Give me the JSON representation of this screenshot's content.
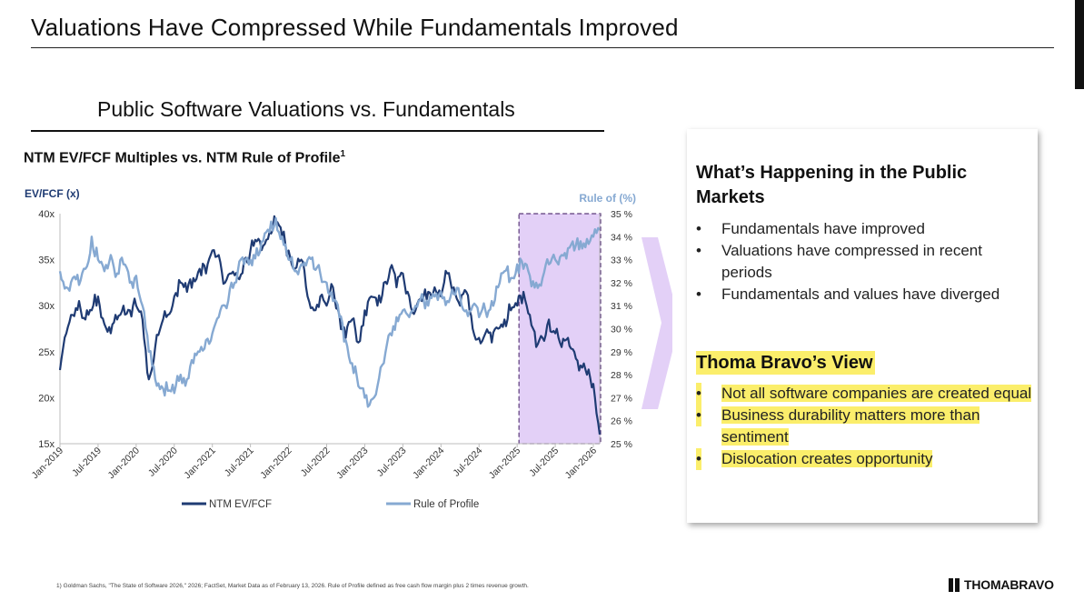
{
  "slide": {
    "title": "Valuations Have Compressed While Fundamentals Improved",
    "section_title": "Public Software Valuations vs. Fundamentals",
    "chart_title": "NTM EV/FCF Multiples vs. NTM Rule of Profile",
    "chart_title_superscript": "1",
    "footnote": "1) Goldman Sachs, \"The State of Software 2026,\" 2026; FactSet, Market Data as of February 13, 2026. Rule of Profile defined as free cash flow margin plus 2 times revenue growth.",
    "logo_text": "THOMABRAVO"
  },
  "panel": {
    "heading": "What’s Happening in the Public Markets",
    "bullets": [
      "Fundamentals have improved",
      "Valuations have compressed in recent periods",
      "Fundamentals and values have diverged"
    ],
    "view_heading": "Thoma Bravo’s View",
    "view_bullets": [
      "Not all software companies are created equal",
      "Business durability matters more than sentiment",
      "Dislocation creates opportunity"
    ],
    "bullet_glyph": "•",
    "highlight_color": "#fbee6b"
  },
  "chart_data": {
    "type": "line",
    "title": "NTM EV/FCF Multiples vs. NTM Rule of Profile",
    "y_left_label": "EV/FCF (x)",
    "y_right_label": "Rule of (%)",
    "y_left_ticks": [
      "40x",
      "35x",
      "30x",
      "25x",
      "20x",
      "15x"
    ],
    "y_right_ticks": [
      "35 %",
      "34 %",
      "33 %",
      "32 %",
      "31 %",
      "30 %",
      "29 %",
      "28 %",
      "27 %",
      "26 %",
      "25 %"
    ],
    "x_tick_labels": [
      "Jan-2019",
      "Jul-2019",
      "Jan-2020",
      "Jul-2020",
      "Jan-2021",
      "Jul-2021",
      "Jan-2022",
      "Jul-2022",
      "Jan-2023",
      "Jul-2023",
      "Jan-2024",
      "Jul-2024",
      "Jan-2025",
      "Jul-2025",
      "Jan-2026"
    ],
    "y_left_range": [
      15,
      40
    ],
    "y_right_range": [
      25,
      35
    ],
    "x_range": [
      "2019-01",
      "2026-02"
    ],
    "highlight_region": [
      "2025-01",
      "2026-01"
    ],
    "highlight_color": "#e3d0f7",
    "series": [
      {
        "name": "NTM EV/FCF",
        "axis": "left",
        "color": "#1f3b73",
        "points": [
          [
            "2019-01",
            23.0
          ],
          [
            "2019-02",
            27.0
          ],
          [
            "2019-03",
            29.0
          ],
          [
            "2019-04",
            30.5
          ],
          [
            "2019-05",
            28.5
          ],
          [
            "2019-06",
            29.5
          ],
          [
            "2019-07",
            31.0
          ],
          [
            "2019-08",
            28.0
          ],
          [
            "2019-09",
            27.0
          ],
          [
            "2019-10",
            28.5
          ],
          [
            "2019-11",
            30.0
          ],
          [
            "2019-12",
            29.5
          ],
          [
            "2020-01",
            30.0
          ],
          [
            "2020-02",
            28.5
          ],
          [
            "2020-03",
            22.0
          ],
          [
            "2020-04",
            25.5
          ],
          [
            "2020-05",
            28.0
          ],
          [
            "2020-06",
            29.0
          ],
          [
            "2020-07",
            31.0
          ],
          [
            "2020-08",
            32.5
          ],
          [
            "2020-09",
            31.5
          ],
          [
            "2020-10",
            33.0
          ],
          [
            "2020-11",
            34.0
          ],
          [
            "2020-12",
            33.5
          ],
          [
            "2021-01",
            36.0
          ],
          [
            "2021-02",
            35.5
          ],
          [
            "2021-03",
            32.5
          ],
          [
            "2021-04",
            33.5
          ],
          [
            "2021-05",
            33.0
          ],
          [
            "2021-06",
            35.0
          ],
          [
            "2021-07",
            36.0
          ],
          [
            "2021-08",
            37.0
          ],
          [
            "2021-09",
            36.5
          ],
          [
            "2021-10",
            38.0
          ],
          [
            "2021-11",
            39.0
          ],
          [
            "2021-12",
            37.5
          ],
          [
            "2022-01",
            36.0
          ],
          [
            "2022-02",
            34.0
          ],
          [
            "2022-03",
            35.0
          ],
          [
            "2022-04",
            31.0
          ],
          [
            "2022-05",
            29.5
          ],
          [
            "2022-06",
            31.0
          ],
          [
            "2022-07",
            30.0
          ],
          [
            "2022-08",
            32.0
          ],
          [
            "2022-09",
            29.0
          ],
          [
            "2022-10",
            26.5
          ],
          [
            "2022-11",
            28.5
          ],
          [
            "2022-12",
            26.0
          ],
          [
            "2023-01",
            29.5
          ],
          [
            "2023-02",
            31.0
          ],
          [
            "2023-03",
            30.0
          ],
          [
            "2023-04",
            32.5
          ],
          [
            "2023-05",
            34.0
          ],
          [
            "2023-06",
            32.0
          ],
          [
            "2023-07",
            33.5
          ],
          [
            "2023-08",
            31.0
          ],
          [
            "2023-09",
            29.5
          ],
          [
            "2023-10",
            30.5
          ],
          [
            "2023-11",
            31.5
          ],
          [
            "2023-12",
            32.0
          ],
          [
            "2024-01",
            31.0
          ],
          [
            "2024-02",
            33.5
          ],
          [
            "2024-03",
            32.0
          ],
          [
            "2024-04",
            30.0
          ],
          [
            "2024-05",
            31.5
          ],
          [
            "2024-06",
            27.5
          ],
          [
            "2024-07",
            26.5
          ],
          [
            "2024-08",
            27.0
          ],
          [
            "2024-09",
            26.0
          ],
          [
            "2024-10",
            27.5
          ],
          [
            "2024-11",
            28.5
          ],
          [
            "2024-12",
            29.5
          ],
          [
            "2025-01",
            30.0
          ],
          [
            "2025-02",
            31.5
          ],
          [
            "2025-03",
            29.0
          ],
          [
            "2025-04",
            25.5
          ],
          [
            "2025-05",
            26.5
          ],
          [
            "2025-06",
            28.5
          ],
          [
            "2025-07",
            27.0
          ],
          [
            "2025-08",
            25.5
          ],
          [
            "2025-09",
            26.5
          ],
          [
            "2025-10",
            25.0
          ],
          [
            "2025-11",
            23.5
          ],
          [
            "2025-12",
            22.5
          ],
          [
            "2026-01",
            21.5
          ],
          [
            "2026-02",
            16.0
          ]
        ]
      },
      {
        "name": "Rule of Profile",
        "axis": "right",
        "color": "#86a9d2",
        "points": [
          [
            "2019-01",
            32.5
          ],
          [
            "2019-02",
            31.8
          ],
          [
            "2019-03",
            32.2
          ],
          [
            "2019-04",
            31.9
          ],
          [
            "2019-05",
            32.6
          ],
          [
            "2019-06",
            34.0
          ],
          [
            "2019-07",
            33.0
          ],
          [
            "2019-08",
            32.5
          ],
          [
            "2019-09",
            33.2
          ],
          [
            "2019-10",
            32.4
          ],
          [
            "2019-11",
            32.8
          ],
          [
            "2019-12",
            32.0
          ],
          [
            "2020-01",
            32.3
          ],
          [
            "2020-02",
            31.0
          ],
          [
            "2020-03",
            29.0
          ],
          [
            "2020-04",
            27.8
          ],
          [
            "2020-05",
            27.5
          ],
          [
            "2020-06",
            27.3
          ],
          [
            "2020-07",
            27.2
          ],
          [
            "2020-08",
            28.0
          ],
          [
            "2020-09",
            27.8
          ],
          [
            "2020-10",
            28.5
          ],
          [
            "2020-11",
            29.0
          ],
          [
            "2020-12",
            29.5
          ],
          [
            "2021-01",
            29.8
          ],
          [
            "2021-02",
            30.5
          ],
          [
            "2021-03",
            31.0
          ],
          [
            "2021-04",
            32.0
          ],
          [
            "2021-05",
            32.5
          ],
          [
            "2021-06",
            32.8
          ],
          [
            "2021-07",
            33.0
          ],
          [
            "2021-08",
            33.5
          ],
          [
            "2021-09",
            33.8
          ],
          [
            "2021-10",
            34.2
          ],
          [
            "2021-11",
            34.8
          ],
          [
            "2021-12",
            34.0
          ],
          [
            "2022-01",
            33.0
          ],
          [
            "2022-02",
            32.5
          ],
          [
            "2022-03",
            32.8
          ],
          [
            "2022-04",
            33.0
          ],
          [
            "2022-05",
            32.6
          ],
          [
            "2022-06",
            32.4
          ],
          [
            "2022-07",
            32.0
          ],
          [
            "2022-08",
            31.2
          ],
          [
            "2022-09",
            30.5
          ],
          [
            "2022-10",
            29.5
          ],
          [
            "2022-11",
            28.5
          ],
          [
            "2022-12",
            27.5
          ],
          [
            "2023-01",
            27.0
          ],
          [
            "2023-02",
            26.9
          ],
          [
            "2023-03",
            27.5
          ],
          [
            "2023-04",
            28.5
          ],
          [
            "2023-05",
            29.8
          ],
          [
            "2023-06",
            30.5
          ],
          [
            "2023-07",
            30.8
          ],
          [
            "2023-08",
            30.5
          ],
          [
            "2023-09",
            31.0
          ],
          [
            "2023-10",
            31.5
          ],
          [
            "2023-11",
            31.0
          ],
          [
            "2023-12",
            31.4
          ],
          [
            "2024-01",
            31.6
          ],
          [
            "2024-02",
            31.2
          ],
          [
            "2024-03",
            31.5
          ],
          [
            "2024-04",
            31.4
          ],
          [
            "2024-05",
            30.8
          ],
          [
            "2024-06",
            31.0
          ],
          [
            "2024-07",
            30.5
          ],
          [
            "2024-08",
            30.8
          ],
          [
            "2024-09",
            31.2
          ],
          [
            "2024-10",
            31.8
          ],
          [
            "2024-11",
            32.5
          ],
          [
            "2024-12",
            32.2
          ],
          [
            "2025-01",
            32.8
          ],
          [
            "2025-02",
            32.6
          ],
          [
            "2025-03",
            32.3
          ],
          [
            "2025-04",
            32.0
          ],
          [
            "2025-05",
            32.2
          ],
          [
            "2025-06",
            32.8
          ],
          [
            "2025-07",
            33.0
          ],
          [
            "2025-08",
            33.2
          ],
          [
            "2025-09",
            33.5
          ],
          [
            "2025-10",
            33.4
          ],
          [
            "2025-11",
            33.8
          ],
          [
            "2025-12",
            33.9
          ],
          [
            "2026-01",
            34.0
          ],
          [
            "2026-02",
            34.3
          ]
        ]
      }
    ],
    "legend_position": "bottom",
    "grid": false
  }
}
